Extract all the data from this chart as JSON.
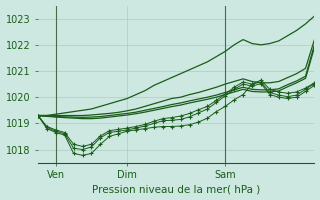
{
  "xlabel": "Pression niveau de la mer( hPa )",
  "bg_color": "#cce8e0",
  "grid_color": "#aaccc4",
  "line_color": "#1a5c1a",
  "vline_color": "#4a6a4a",
  "ylim": [
    1017.5,
    1023.5
  ],
  "xlim": [
    0,
    31
  ],
  "xtick_positions": [
    2,
    10,
    21
  ],
  "xtick_labels": [
    "Ven",
    "Dim",
    "Sam"
  ],
  "ytick_positions": [
    1018,
    1019,
    1020,
    1021,
    1022,
    1023
  ],
  "vlines": [
    2,
    21
  ],
  "smooth_series": [
    [
      1019.3,
      1019.3,
      1019.35,
      1019.4,
      1019.45,
      1019.5,
      1019.55,
      1019.65,
      1019.75,
      1019.85,
      1019.95,
      1020.1,
      1020.25,
      1020.45,
      1020.6,
      1020.75,
      1020.9,
      1021.05,
      1021.2,
      1021.35,
      1021.55,
      1021.75,
      1022.0,
      1022.2,
      1022.05,
      1022.0,
      1022.05,
      1022.15,
      1022.35,
      1022.55,
      1022.8,
      1023.1
    ],
    [
      1019.3,
      1019.3,
      1019.3,
      1019.3,
      1019.3,
      1019.3,
      1019.32,
      1019.35,
      1019.38,
      1019.42,
      1019.48,
      1019.55,
      1019.65,
      1019.75,
      1019.85,
      1019.95,
      1020.0,
      1020.1,
      1020.18,
      1020.28,
      1020.38,
      1020.5,
      1020.6,
      1020.7,
      1020.6,
      1020.55,
      1020.55,
      1020.6,
      1020.75,
      1020.9,
      1021.1,
      1022.2
    ],
    [
      1019.3,
      1019.28,
      1019.26,
      1019.25,
      1019.24,
      1019.23,
      1019.24,
      1019.26,
      1019.3,
      1019.34,
      1019.38,
      1019.43,
      1019.5,
      1019.57,
      1019.64,
      1019.72,
      1019.78,
      1019.86,
      1019.93,
      1020.0,
      1020.08,
      1020.18,
      1020.28,
      1020.38,
      1020.3,
      1020.28,
      1020.28,
      1020.32,
      1020.48,
      1020.62,
      1020.8,
      1022.0
    ],
    [
      1019.3,
      1019.27,
      1019.24,
      1019.22,
      1019.2,
      1019.18,
      1019.18,
      1019.2,
      1019.24,
      1019.28,
      1019.32,
      1019.37,
      1019.43,
      1019.5,
      1019.57,
      1019.64,
      1019.7,
      1019.78,
      1019.85,
      1019.92,
      1020.0,
      1020.1,
      1020.2,
      1020.3,
      1020.22,
      1020.2,
      1020.2,
      1020.24,
      1020.4,
      1020.55,
      1020.72,
      1021.9
    ]
  ],
  "marker_series": [
    [
      1019.3,
      1018.8,
      1018.65,
      1018.55,
      1017.85,
      1017.78,
      1017.85,
      1018.2,
      1018.5,
      1018.6,
      1018.7,
      1018.75,
      1018.8,
      1018.85,
      1018.88,
      1018.88,
      1018.9,
      1018.95,
      1019.05,
      1019.2,
      1019.45,
      1019.65,
      1019.9,
      1020.1,
      1020.5,
      1020.65,
      1020.3,
      1020.2,
      1020.15,
      1020.2,
      1020.35,
      1020.55
    ],
    [
      1019.3,
      1018.85,
      1018.7,
      1018.6,
      1018.05,
      1018.0,
      1018.1,
      1018.45,
      1018.65,
      1018.7,
      1018.75,
      1018.82,
      1018.9,
      1019.0,
      1019.1,
      1019.12,
      1019.15,
      1019.25,
      1019.4,
      1019.55,
      1019.8,
      1020.05,
      1020.3,
      1020.5,
      1020.42,
      1020.52,
      1020.1,
      1020.0,
      1019.95,
      1020.0,
      1020.22,
      1020.45
    ],
    [
      1019.3,
      1018.88,
      1018.75,
      1018.65,
      1018.2,
      1018.12,
      1018.2,
      1018.52,
      1018.72,
      1018.77,
      1018.82,
      1018.88,
      1018.96,
      1019.08,
      1019.18,
      1019.22,
      1019.28,
      1019.38,
      1019.52,
      1019.65,
      1019.88,
      1020.12,
      1020.38,
      1020.58,
      1020.5,
      1020.58,
      1020.18,
      1020.08,
      1020.02,
      1020.08,
      1020.3,
      1020.52
    ]
  ]
}
